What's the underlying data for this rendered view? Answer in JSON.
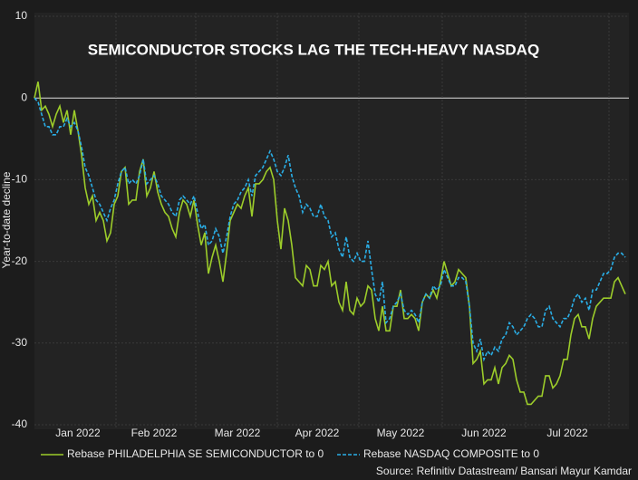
{
  "chart_data": {
    "type": "line",
    "title": "SEMICONDUCTOR STOCKS LAG THE TECH-HEAVY NASDAQ",
    "ylabel": "Year-to-date decline",
    "source": "Source: Refinitiv Datastream/ Bansari Mayur Kamdar",
    "ylim": [
      -40,
      10
    ],
    "yticks": [
      -40,
      -30,
      -20,
      -10,
      0,
      10
    ],
    "xticks": [
      {
        "value": 12,
        "label": "Jan 2022"
      },
      {
        "value": 33,
        "label": "Feb 2022"
      },
      {
        "value": 56,
        "label": "Mar 2022"
      },
      {
        "value": 78,
        "label": "Apr 2022"
      },
      {
        "value": 101,
        "label": "May 2022"
      },
      {
        "value": 124,
        "label": "Jun 2022"
      },
      {
        "value": 147,
        "label": "Jul 2022"
      }
    ],
    "categories": [
      null,
      null,
      null,
      null,
      null,
      null,
      null,
      null,
      null,
      null,
      null,
      null,
      null,
      null,
      null,
      null,
      null,
      null,
      null,
      null,
      null,
      null,
      null,
      null,
      null,
      null,
      null,
      null,
      null,
      null,
      null,
      null,
      null,
      null,
      null,
      null,
      null,
      null,
      null,
      null,
      null,
      null,
      null,
      null,
      null,
      null,
      null,
      null,
      null,
      null,
      null,
      null,
      null,
      null,
      null,
      null,
      null,
      null,
      null,
      null,
      null,
      null,
      null,
      null,
      null,
      null,
      null,
      null,
      null,
      null,
      null,
      null,
      null,
      null,
      null,
      null,
      null,
      null,
      null,
      null,
      null,
      null,
      null,
      null,
      null,
      null,
      null,
      null,
      null,
      null,
      null,
      null,
      null,
      null,
      null,
      null,
      null,
      null,
      null,
      null,
      null,
      null,
      null,
      null,
      null,
      null,
      null,
      null,
      null,
      null,
      null,
      null,
      null,
      null,
      null,
      null,
      null,
      null,
      null,
      null,
      null,
      null,
      null,
      null,
      null,
      null,
      null,
      null,
      null,
      null,
      null,
      null,
      null,
      null,
      null,
      null,
      null,
      null,
      null,
      null,
      null,
      null,
      null,
      null,
      null,
      null,
      null,
      null,
      null,
      null,
      null,
      null,
      null,
      null,
      null,
      null,
      null,
      null,
      null,
      null,
      null,
      null,
      null,
      null
    ],
    "series": [
      {
        "name": "Rebase PHILADELPHIA SE SEMICONDUCTOR to 0",
        "color": "#9ccc2a",
        "dashed": false,
        "values": [
          0,
          2,
          -1.5,
          -1,
          -2,
          -3.5,
          -2,
          -1,
          -3,
          -1.5,
          -4.5,
          -1.5,
          -4,
          -7,
          -11,
          -13,
          -12,
          -15,
          -14,
          -15,
          -17.5,
          -16.5,
          -13,
          -12,
          -9,
          -8.5,
          -13,
          -12.5,
          -12.5,
          -9,
          -7.5,
          -12,
          -11,
          -9,
          -11.5,
          -13,
          -14,
          -14.5,
          -16,
          -17,
          -14,
          -12.5,
          -13,
          -14.5,
          -12.5,
          -15.5,
          -18,
          -16.5,
          -21.5,
          -19.5,
          -18,
          -20,
          -22.5,
          -19,
          -15,
          -14,
          -13,
          -13.5,
          -12,
          -11,
          -14.5,
          -10.5,
          -10.5,
          -10,
          -9,
          -8.5,
          -10,
          -15,
          -18.5,
          -13.5,
          -15,
          -18,
          -22,
          -22.5,
          -23,
          -20.5,
          -21,
          -23,
          -23,
          -20.5,
          -21,
          -20,
          -23,
          -22.5,
          -25,
          -26,
          -22.5,
          -26,
          -26.5,
          -24.5,
          -25.5,
          -25,
          -23,
          -23.5,
          -27,
          -28.5,
          -25.5,
          -28.5,
          -28.5,
          -25.5,
          -25.5,
          -23.5,
          -27,
          -27,
          -26.5,
          -27,
          -28.5,
          -25,
          -24,
          -24.5,
          -23.5,
          -24.5,
          -22.5,
          -20,
          -21.5,
          -23,
          -22.5,
          -21,
          -21.5,
          -22,
          -25.5,
          -32.5,
          -32,
          -31,
          -35,
          -34.5,
          -34.5,
          -33,
          -35,
          -33,
          -32.5,
          -31.5,
          -32,
          -34.5,
          -36,
          -36,
          -37.5,
          -37.5,
          -37,
          -36.5,
          -36.5,
          -34,
          -34,
          -35.5,
          -35,
          -34,
          -32,
          -32,
          -29,
          -27,
          -26.5,
          -28,
          -28,
          -29.5,
          -27,
          -25.5,
          -25,
          -24.5,
          -24.5,
          -24.5,
          -22.5,
          -22,
          -23,
          -24
        ]
      },
      {
        "name": "Rebase NASDAQ COMPOSITE to 0",
        "color": "#2aaee6",
        "dashed": true,
        "values": [
          0,
          -0.5,
          -2,
          -3.5,
          -3.5,
          -4.5,
          -4.5,
          -3.5,
          -3.5,
          -2.5,
          -3.5,
          -3,
          -4,
          -6,
          -8.5,
          -9.5,
          -11,
          -12.5,
          -13,
          -14,
          -15,
          -13.5,
          -12.5,
          -10.5,
          -9,
          -8.5,
          -10.5,
          -10,
          -10.5,
          -9.5,
          -7.5,
          -10.5,
          -10,
          -9.5,
          -10.5,
          -12,
          -12.5,
          -13,
          -14,
          -14.5,
          -12.5,
          -12,
          -12.5,
          -13,
          -12,
          -14,
          -16,
          -15.5,
          -18,
          -17.5,
          -16,
          -17,
          -19,
          -17,
          -14.5,
          -13,
          -12.5,
          -11.5,
          -11,
          -10,
          -12,
          -9.5,
          -9,
          -8.5,
          -7.5,
          -6.5,
          -7.5,
          -9,
          -9.5,
          -8.5,
          -7,
          -9.5,
          -11,
          -12,
          -14,
          -13,
          -13.5,
          -14.5,
          -14.5,
          -13,
          -14.5,
          -15,
          -17,
          -16.5,
          -18.5,
          -19.5,
          -17,
          -19.5,
          -20,
          -19,
          -20,
          -20,
          -17.5,
          -21,
          -24,
          -25,
          -22.5,
          -27.5,
          -27,
          -25.5,
          -25,
          -24,
          -26,
          -26.5,
          -26,
          -26.5,
          -27.5,
          -25,
          -24,
          -24.5,
          -23,
          -23.5,
          -23,
          -21,
          -22,
          -23,
          -23,
          -22,
          -22,
          -22.5,
          -25.5,
          -30,
          -31,
          -29.5,
          -32,
          -31,
          -31.5,
          -30.5,
          -31,
          -29.5,
          -29,
          -27.5,
          -28,
          -29,
          -28.5,
          -28,
          -27,
          -26.5,
          -27,
          -28,
          -28,
          -26,
          -25.5,
          -27,
          -27.5,
          -28,
          -27,
          -27,
          -26,
          -24.5,
          -24,
          -25,
          -24.5,
          -26,
          -23.5,
          -23.5,
          -22.5,
          -21.5,
          -21.5,
          -21,
          -19.5,
          -19,
          -19,
          -19.5
        ]
      }
    ]
  }
}
